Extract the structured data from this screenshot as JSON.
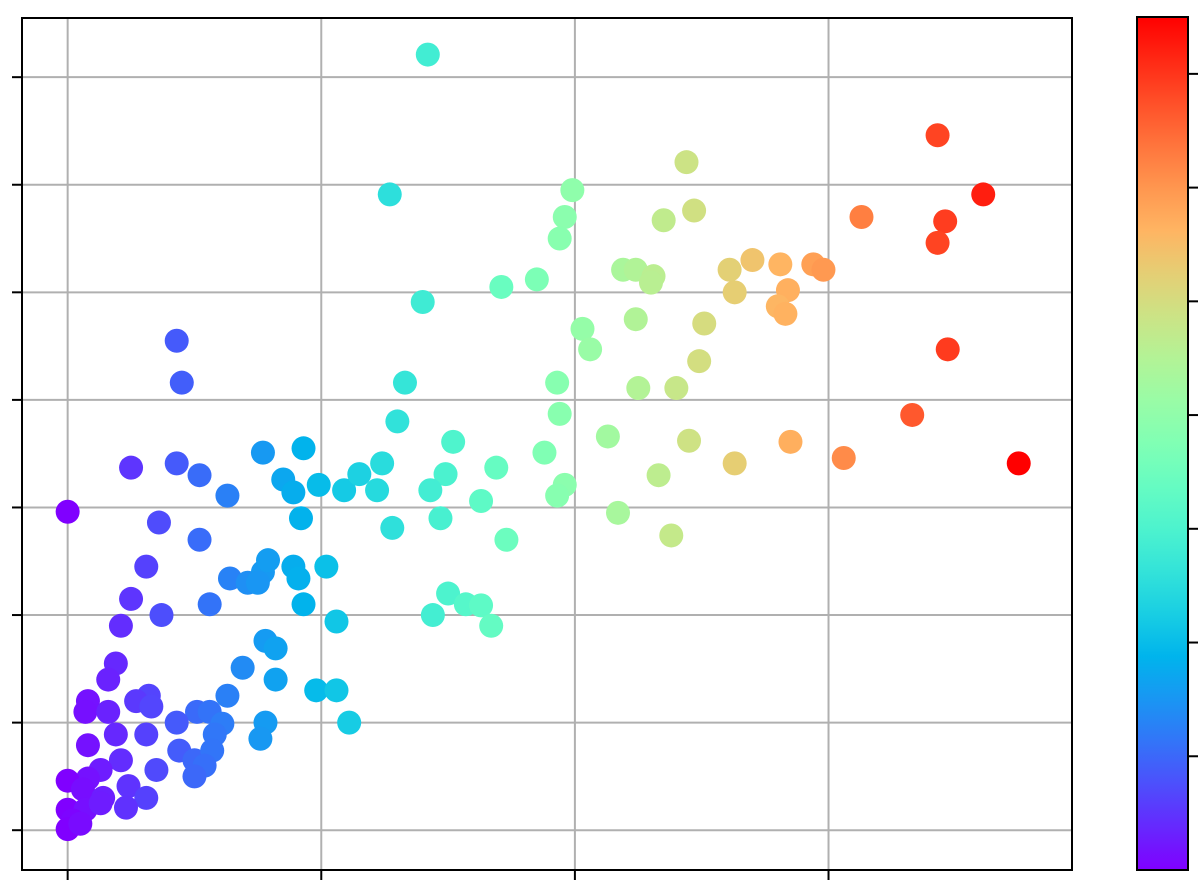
{
  "chart_data": {
    "type": "scatter",
    "x": [
      1.42,
      3.43,
      3.61,
      3.46,
      3.43,
      3.13,
      1.27,
      2.44,
      1.99,
      1.96,
      2.35,
      2.47,
      1.94,
      2.19,
      2.24,
      2.31,
      2.3,
      2.61,
      2.7,
      2.81,
      2.94,
      2.98,
      2.63,
      2.84,
      2.8,
      2.83,
      1.85,
      1.71,
      1.4,
      2.03,
      2.06,
      2.24,
      2.51,
      2.49,
      3.47,
      0.43,
      0.45,
      1.33,
      1.93,
      2.25,
      2.4,
      1.94,
      1.3,
      3.33,
      0.93,
      0.77,
      1.52,
      2.13,
      2.45,
      2.85,
      3.06,
      3.75,
      2.63,
      1.88,
      0.25,
      0.43,
      0.52,
      0.63,
      0.85,
      0.89,
      0.99,
      1.09,
      1.15,
      1.24,
      1.22,
      1.49,
      1.43,
      1.63,
      1.69,
      1.96,
      1.93,
      2.33,
      0.0,
      0.36,
      0.92,
      1.47,
      2.17,
      1.28,
      2.38,
      1.73,
      0.52,
      0.31,
      0.64,
      0.71,
      0.77,
      0.79,
      0.89,
      0.91,
      1.02,
      0.75,
      0.25,
      0.93,
      0.56,
      0.37,
      1.5,
      1.44,
      1.57,
      1.63,
      1.67,
      1.06,
      0.21,
      0.78,
      0.82,
      0.19,
      0.69,
      0.16,
      0.82,
      0.08,
      0.32,
      0.27,
      0.63,
      0.98,
      1.06,
      0.51,
      0.56,
      0.07,
      0.16,
      0.33,
      0.43,
      0.78,
      1.11,
      0.61,
      0.08,
      0.19,
      0.31,
      0.58,
      0.76,
      0.21,
      0.44,
      0.13,
      0.35,
      0.5,
      0.57,
      0.54,
      0.08,
      0.5,
      0.0,
      0.06,
      0.24,
      0.14,
      0.31,
      0.0,
      0.07,
      0.13,
      0.23,
      0.02,
      0.0,
      0.05
    ],
    "y": [
      7.21,
      6.46,
      5.91,
      5.66,
      5.46,
      5.7,
      5.91,
      6.21,
      5.95,
      5.7,
      5.67,
      5.76,
      5.5,
      5.21,
      5.21,
      5.15,
      5.09,
      5.21,
      5.3,
      5.26,
      5.26,
      5.21,
      5.0,
      5.02,
      4.87,
      4.8,
      5.12,
      5.05,
      4.91,
      4.66,
      4.47,
      4.75,
      4.71,
      4.36,
      4.47,
      4.55,
      4.16,
      4.16,
      4.16,
      4.11,
      4.11,
      3.87,
      3.8,
      3.86,
      3.55,
      3.51,
      3.61,
      3.66,
      3.62,
      3.61,
      3.46,
      3.41,
      3.41,
      3.51,
      3.37,
      3.41,
      3.3,
      3.11,
      3.26,
      3.14,
      3.21,
      3.16,
      3.31,
      3.41,
      3.16,
      3.31,
      3.16,
      3.06,
      3.37,
      3.21,
      3.11,
      3.3,
      2.96,
      2.86,
      2.9,
      2.9,
      2.95,
      2.81,
      2.74,
      2.7,
      2.7,
      2.45,
      2.34,
      2.3,
      2.4,
      2.51,
      2.45,
      2.34,
      2.45,
      2.3,
      2.15,
      2.1,
      2.1,
      2.0,
      2.2,
      2.0,
      2.1,
      2.09,
      1.9,
      1.94,
      1.9,
      1.76,
      1.69,
      1.55,
      1.51,
      1.4,
      1.4,
      1.2,
      1.25,
      1.2,
      1.25,
      1.3,
      1.3,
      1.1,
      1.1,
      1.1,
      1.1,
      1.15,
      1.0,
      1.0,
      1.0,
      0.99,
      0.79,
      0.89,
      0.89,
      0.89,
      0.85,
      0.65,
      0.74,
      0.56,
      0.56,
      0.65,
      0.74,
      0.6,
      0.48,
      0.5,
      0.46,
      0.38,
      0.41,
      0.3,
      0.3,
      0.19,
      0.19,
      0.25,
      0.21,
      0.09,
      0.01,
      0.06
    ],
    "color_by": "x",
    "colormap": "rainbow",
    "clim": [
      0,
      3.75
    ],
    "cticks": [
      0.5,
      1,
      1.5,
      2,
      2.5,
      3,
      3.5
    ],
    "xlim": [
      -0.18,
      3.96
    ],
    "ylim": [
      -0.37,
      7.55
    ],
    "xticks": [
      0,
      1,
      2,
      3
    ],
    "yticks": [
      0,
      1,
      2,
      3,
      4,
      5,
      6,
      7
    ],
    "grid": true
  }
}
